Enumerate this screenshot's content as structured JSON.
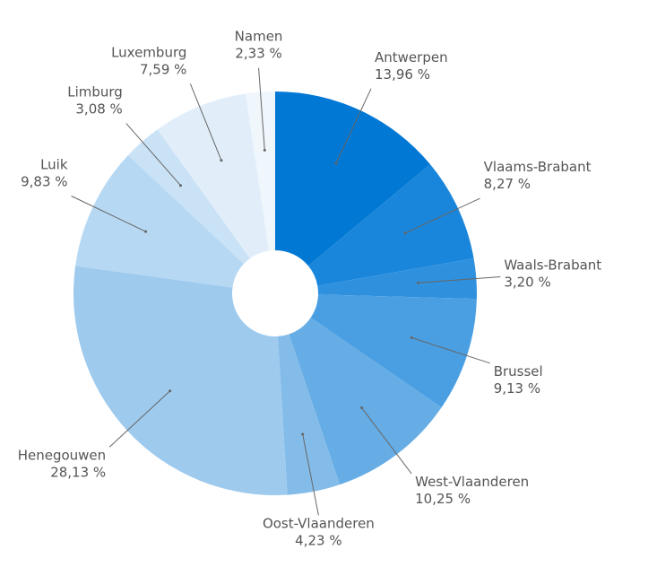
{
  "chart_data": {
    "type": "donut",
    "categories": [
      "Antwerpen",
      "Vlaams-Brabant",
      "Waals-Brabant",
      "Brussel",
      "West-Vlaanderen",
      "Oost-Vlaanderen",
      "Henegouwen",
      "Luik",
      "Limburg",
      "Luxemburg",
      "Namen"
    ],
    "values": [
      13.96,
      8.27,
      3.2,
      9.13,
      10.25,
      4.23,
      28.13,
      9.83,
      3.08,
      7.59,
      2.33
    ],
    "value_labels": [
      "13,96 %",
      "8,27 %",
      "3,20 %",
      "9,13 %",
      "10,25 %",
      "4,23 %",
      "28,13 %",
      "9,83 %",
      "3,08 %",
      "7,59 %",
      "2,33 %"
    ],
    "colors": [
      "#0078d4",
      "#1a86db",
      "#2f91de",
      "#4a9fe3",
      "#66ade6",
      "#84bce9",
      "#9ecaee",
      "#b6d8f3",
      "#cae2f6",
      "#e1eefa",
      "#eff6fc"
    ]
  }
}
